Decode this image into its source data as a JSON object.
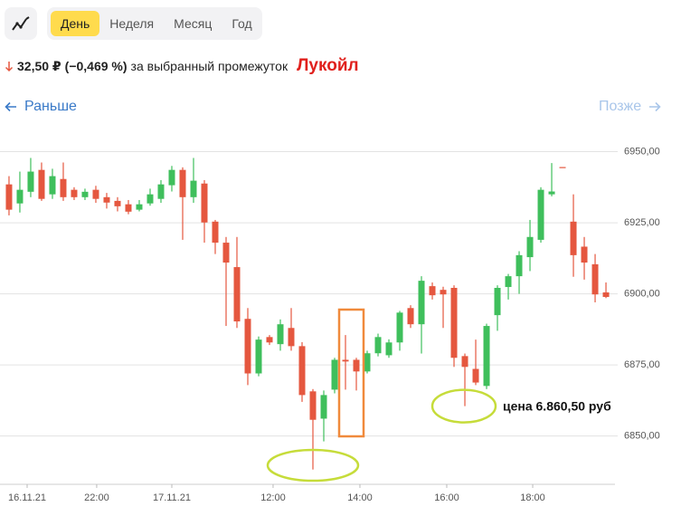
{
  "ui": {
    "tabs": [
      "День",
      "Неделя",
      "Месяц",
      "Год"
    ],
    "change": "32,50 ₽",
    "change_pct": "(−0,469 %)",
    "period": "за выбранный промежуток",
    "ticker": "Лукойл",
    "earlier": "Раньше",
    "later": "Позже"
  },
  "chart_data": {
    "type": "candlestick",
    "up_color": "#3fbf5c",
    "down_color": "#e5573f",
    "grid": true,
    "ylim": [
      6833,
      6954
    ],
    "yticks": [
      {
        "value": 6850,
        "label": "6850,00"
      },
      {
        "value": 6875,
        "label": "6875,00"
      },
      {
        "value": 6900,
        "label": "6900,00"
      },
      {
        "value": 6925,
        "label": "6925,00"
      },
      {
        "value": 6950,
        "label": "6950,00"
      }
    ],
    "xlim": [
      -0.83,
      55.83
    ],
    "xticks": [
      {
        "value": 1.67,
        "label": "16.11.21"
      },
      {
        "value": 8.08,
        "label": "22:00"
      },
      {
        "value": 15,
        "label": "17.11.21"
      },
      {
        "value": 24.33,
        "label": "12:00"
      },
      {
        "value": 32.33,
        "label": "14:00"
      },
      {
        "value": 40.33,
        "label": "16:00"
      },
      {
        "value": 48.25,
        "label": "18:00"
      }
    ],
    "open": [
      6938.5,
      6931.8,
      6935.9,
      6943.6,
      6935.0,
      6940.4,
      6936.6,
      6934.0,
      6936.6,
      6934.0,
      6932.7,
      6931.5,
      6929.6,
      6931.8,
      6933.4,
      6938.2,
      6943.6,
      6934.0,
      6938.8,
      6925.4,
      6918.0,
      6909.4,
      6891.2,
      6872.0,
      6884.8,
      6882.3,
      6888.0,
      6881.6,
      6865.7,
      6856.1,
      6866.3,
      6876.8,
      6876.8,
      6872.7,
      6879.1,
      6878.4,
      6882.9,
      6895.0,
      6889.3,
      6902.7,
      6901.4,
      6902.1,
      6878.1,
      6873.6,
      6867.6,
      6892.5,
      6902.4,
      6906.2,
      6912.9,
      6919.0,
      6935.0,
      6944.6,
      6925.4,
      6916.6,
      6910.4,
      6900.5
    ],
    "high": [
      6941.4,
      6943.0,
      6947.8,
      6946.2,
      6944.0,
      6946.2,
      6937.5,
      6937.0,
      6938.0,
      6935.5,
      6934.0,
      6933.0,
      6933.0,
      6937.0,
      6940.0,
      6945.0,
      6944.5,
      6947.8,
      6940.0,
      6926.0,
      6920.0,
      6920.0,
      6895.0,
      6885.0,
      6885.5,
      6891.0,
      6895.0,
      6883.0,
      6866.5,
      6866.0,
      6877.5,
      6885.5,
      6877.5,
      6880.0,
      6886.0,
      6884.0,
      6894.0,
      6896.0,
      6906.2,
      6904.0,
      6902.5,
      6903.0,
      6879.0,
      6883.9,
      6889.5,
      6903.0,
      6907.0,
      6915.0,
      6926.0,
      6937.5,
      6946.0,
      6944.6,
      6935.0,
      6920.0,
      6914.0,
      6904.0
    ],
    "low": [
      6927.6,
      6928.6,
      6934.0,
      6932.7,
      6933.4,
      6932.7,
      6933.0,
      6933.0,
      6932.0,
      6930.0,
      6929.0,
      6928.0,
      6929.0,
      6931.0,
      6932.0,
      6936.0,
      6919.0,
      6932.0,
      6918.0,
      6914.0,
      6888.7,
      6888.0,
      6867.9,
      6871.0,
      6882.0,
      6880.0,
      6880.0,
      6862.0,
      6838.2,
      6848.1,
      6865.0,
      6866.3,
      6866.0,
      6872.0,
      6878.0,
      6877.5,
      6880.0,
      6888.0,
      6879.0,
      6898.0,
      6888.0,
      6874.3,
      6860.5,
      6867.9,
      6866.5,
      6887.0,
      6898.0,
      6900.0,
      6908.0,
      6918.0,
      6934.3,
      6944.5,
      6906.0,
      6905.0,
      6897.0,
      6898.5
    ],
    "close": [
      6929.6,
      6936.6,
      6943.0,
      6933.4,
      6941.4,
      6934.0,
      6934.0,
      6935.9,
      6933.4,
      6932.1,
      6930.8,
      6928.9,
      6931.5,
      6935.0,
      6938.5,
      6943.6,
      6934.0,
      6939.8,
      6925.1,
      6918.0,
      6911.0,
      6890.3,
      6872.0,
      6883.9,
      6882.9,
      6889.3,
      6881.6,
      6864.4,
      6855.7,
      6864.4,
      6876.8,
      6876.2,
      6872.7,
      6879.1,
      6884.8,
      6882.9,
      6893.4,
      6889.3,
      6904.6,
      6899.5,
      6899.8,
      6877.5,
      6874.3,
      6868.8,
      6888.7,
      6902.1,
      6906.2,
      6913.6,
      6920.0,
      6936.6,
      6936.0,
      6944.5,
      6913.6,
      6911.0,
      6899.8,
      6898.9
    ],
    "annotation": {
      "text": "цена 6.860,50 руб",
      "value": 6860.5
    }
  }
}
